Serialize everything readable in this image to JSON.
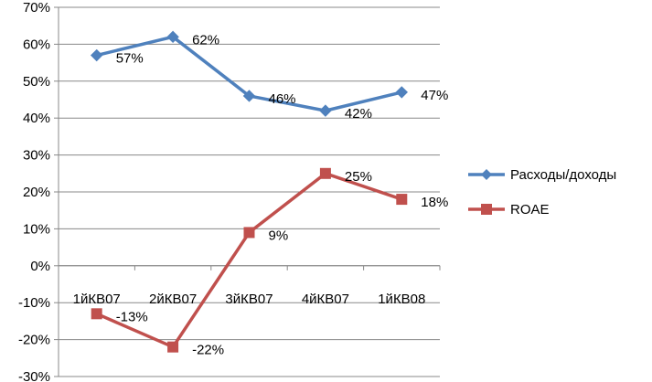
{
  "chart_data": {
    "type": "line",
    "categories": [
      "1йКВ07",
      "2йКВ07",
      "3йКВ07",
      "4йКВ07",
      "1йКВ08"
    ],
    "series": [
      {
        "name": "Расходы/доходы",
        "values": [
          57,
          62,
          46,
          42,
          47
        ],
        "labels": [
          "57%",
          "62%",
          "46%",
          "42%",
          "47%"
        ],
        "color": "#4F81BD",
        "marker": "diamond"
      },
      {
        "name": "ROAE",
        "values": [
          -13,
          -22,
          9,
          25,
          18
        ],
        "labels": [
          "-13%",
          "-22%",
          "9%",
          "25%",
          "18%"
        ],
        "color": "#C0504D",
        "marker": "square"
      }
    ],
    "ylim": [
      -30,
      70
    ],
    "yticks": [
      70,
      60,
      50,
      40,
      30,
      20,
      10,
      0,
      -10,
      -20,
      -30
    ],
    "ytick_labels": [
      "70%",
      "60%",
      "50%",
      "40%",
      "30%",
      "20%",
      "10%",
      "0%",
      "-10%",
      "-20%",
      "-30%"
    ],
    "grid": true,
    "legend_position": "right",
    "title": "",
    "xlabel": "",
    "ylabel": ""
  }
}
